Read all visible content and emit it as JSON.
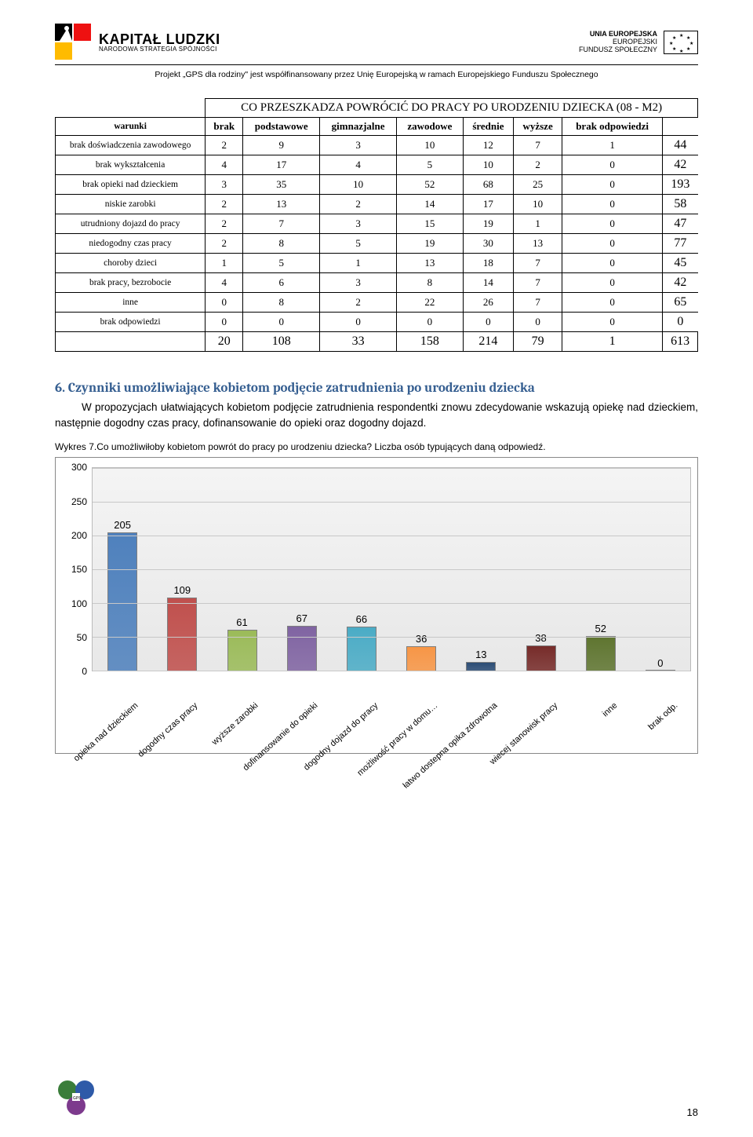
{
  "header": {
    "kl_big": "KAPITAŁ LUDZKI",
    "kl_small": "NARODOWA STRATEGIA SPÓJNOŚCI",
    "eu_l1": "UNIA EUROPEJSKA",
    "eu_l2": "EUROPEJSKI",
    "eu_l3": "FUNDUSZ SPOŁECZNY",
    "subline": "Projekt „GPS dla rodziny\" jest współfinansowany przez Unię Europejską w ramach Europejskiego Funduszu Społecznego"
  },
  "table": {
    "title": "CO PRZESZKADZA POWRÓCIĆ DO PRACY PO URODZENIU DZIECKA (08 - M2)",
    "cols": [
      "warunki",
      "brak",
      "podstawowe",
      "gimnazjalne",
      "zawodowe",
      "średnie",
      "wyższe",
      "brak odpowiedzi",
      ""
    ],
    "rows": [
      {
        "label": "brak doświadczenia zawodowego",
        "cells": [
          "2",
          "9",
          "3",
          "10",
          "12",
          "7",
          "1"
        ],
        "sum": "44"
      },
      {
        "label": "brak wykształcenia",
        "cells": [
          "4",
          "17",
          "4",
          "5",
          "10",
          "2",
          "0"
        ],
        "sum": "42"
      },
      {
        "label": "brak opieki nad dzieckiem",
        "cells": [
          "3",
          "35",
          "10",
          "52",
          "68",
          "25",
          "0"
        ],
        "sum": "193"
      },
      {
        "label": "niskie zarobki",
        "cells": [
          "2",
          "13",
          "2",
          "14",
          "17",
          "10",
          "0"
        ],
        "sum": "58"
      },
      {
        "label": "utrudniony dojazd do pracy",
        "cells": [
          "2",
          "7",
          "3",
          "15",
          "19",
          "1",
          "0"
        ],
        "sum": "47"
      },
      {
        "label": "niedogodny czas pracy",
        "cells": [
          "2",
          "8",
          "5",
          "19",
          "30",
          "13",
          "0"
        ],
        "sum": "77"
      },
      {
        "label": "choroby dzieci",
        "cells": [
          "1",
          "5",
          "1",
          "13",
          "18",
          "7",
          "0"
        ],
        "sum": "45"
      },
      {
        "label": "brak pracy, bezrobocie",
        "cells": [
          "4",
          "6",
          "3",
          "8",
          "14",
          "7",
          "0"
        ],
        "sum": "42"
      },
      {
        "label": "inne",
        "cells": [
          "0",
          "8",
          "2",
          "22",
          "26",
          "7",
          "0"
        ],
        "sum": "65"
      },
      {
        "label": "brak odpowiedzi",
        "cells": [
          "0",
          "0",
          "0",
          "0",
          "0",
          "0",
          "0"
        ],
        "sum": "0"
      }
    ],
    "totals": [
      "",
      "20",
      "108",
      "33",
      "158",
      "214",
      "79",
      "1",
      "613"
    ]
  },
  "section6": {
    "heading": "6. Czynniki umożliwiające kobietom podjęcie zatrudnienia po urodzeniu dziecka",
    "para": "W propozycjach ułatwiających kobietom podjęcie zatrudnienia respondentki znowu zdecydowanie wskazują opiekę nad dzieckiem, następnie dogodny czas pracy, dofinansowanie do opieki oraz dogodny dojazd.",
    "caption": "Wykres 7.Co umożliwiłoby kobietom powrót do pracy po urodzeniu dziecka? Liczba osób typujących daną odpowiedź."
  },
  "chart": {
    "type": "bar",
    "ylim": [
      0,
      300
    ],
    "ytick_step": 50,
    "yticks": [
      "0",
      "50",
      "100",
      "150",
      "200",
      "250",
      "300"
    ],
    "background_color": "#eeeeee",
    "grid_color": "#c8c8c8",
    "bar_border": "#7f7f7f",
    "label_fontsize": 12,
    "categories": [
      "opieka nad dzieckiem",
      "dogodny czas pracy",
      "wyższe zarobki",
      "dofinansowanie do opieki",
      "dogodny dojazd do pracy",
      "możliwość pracy w domu…",
      "łatwo dostepna opika zdrowotna",
      "wiecej stanowisk pracy",
      "inne",
      "brak odp."
    ],
    "values": [
      205,
      109,
      61,
      67,
      66,
      36,
      13,
      38,
      52,
      0
    ],
    "bar_colors": [
      "#4f81bd",
      "#c0504d",
      "#9bbb59",
      "#8064a2",
      "#4bacc6",
      "#f79646",
      "#2c4d75",
      "#772c2a",
      "#5f7530",
      "#1f497d"
    ]
  },
  "footer": {
    "page": "18"
  }
}
